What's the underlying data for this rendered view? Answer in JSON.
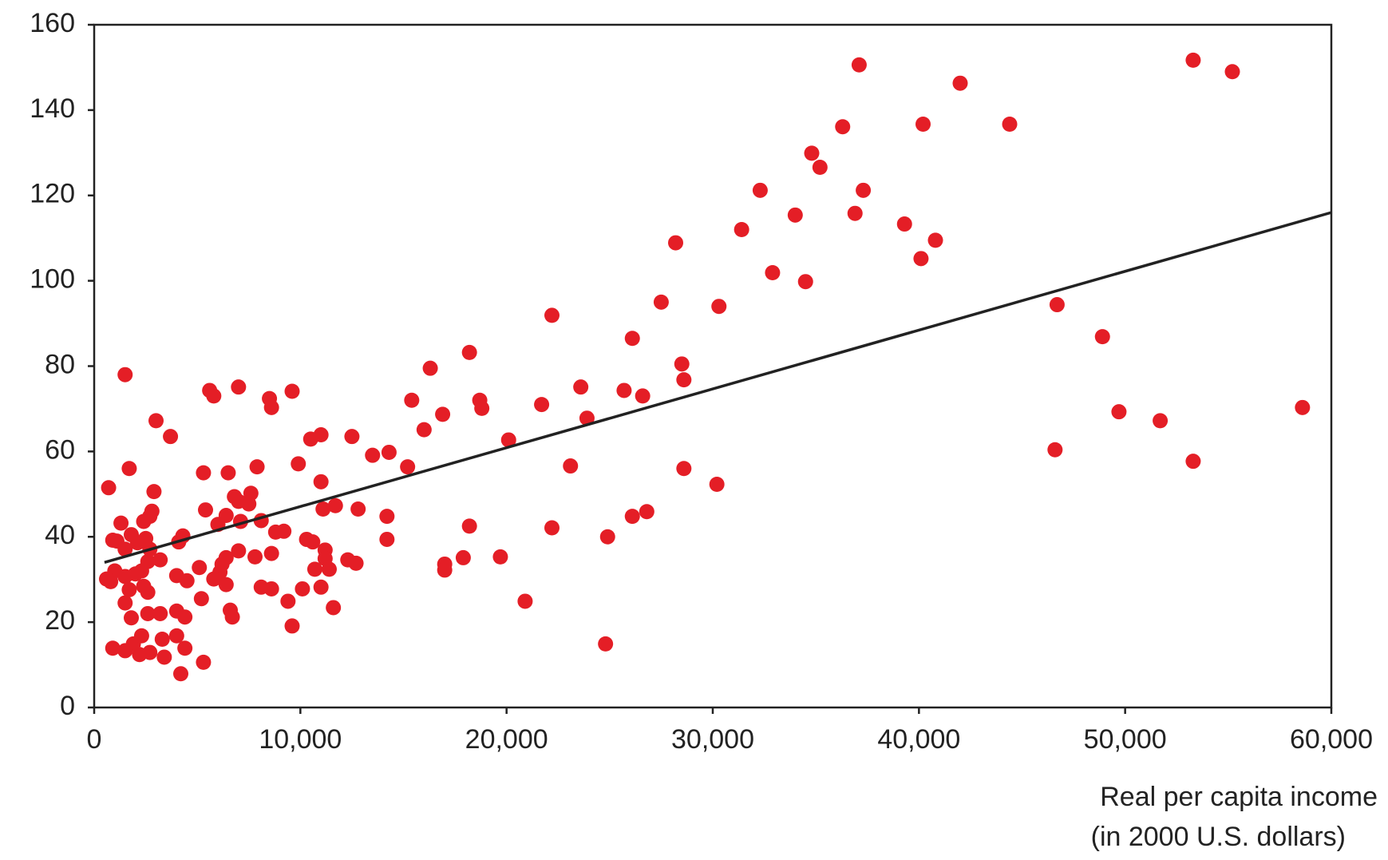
{
  "chart_data": {
    "type": "scatter",
    "x_label": [
      "Real per capita income",
      "(in 2000 U.S. dollars)"
    ],
    "xlim": [
      0,
      60000
    ],
    "xticks": [
      0,
      {
        "value": 10000,
        "label": "10,000"
      },
      {
        "value": 20000,
        "label": "20,000"
      },
      {
        "value": 30000,
        "label": "30,000"
      },
      {
        "value": 40000,
        "label": "40,000"
      },
      {
        "value": 50000,
        "label": "50,000"
      },
      {
        "value": 60000,
        "label": "60,000"
      }
    ],
    "ylim": [
      0,
      160
    ],
    "yticks": [
      0,
      20,
      40,
      60,
      80,
      100,
      120,
      140,
      160
    ],
    "series": [
      {
        "color": "#e41e26",
        "x": [
          37100,
          53300,
          55200,
          42000,
          44400,
          40200,
          36300,
          34800,
          35200,
          32300,
          37300,
          34000,
          36900,
          31400,
          39300,
          40800,
          40100,
          28200,
          32900,
          34500,
          27500,
          30300,
          22200,
          26100,
          46700,
          48900,
          58600,
          49700,
          51700,
          46600,
          53300,
          18200,
          16300,
          28500,
          28600,
          23600,
          25700,
          26600,
          18700,
          18800,
          21700,
          15400,
          16900,
          16000,
          23900,
          20100,
          28600,
          23100,
          30200,
          15200,
          14300,
          13500,
          12500,
          11000,
          10500,
          9900,
          11000,
          11100,
          11700,
          12800,
          14200,
          14200,
          18200,
          22200,
          26100,
          26800,
          24900,
          17900,
          19700,
          17000,
          17000,
          20900,
          24800,
          9600,
          8500,
          8600,
          7000,
          5600,
          5800,
          1500,
          3000,
          3700,
          1700,
          700,
          2900,
          5300,
          6500,
          7900,
          6800,
          7600,
          7500,
          7000,
          5400,
          6400,
          7100,
          8100,
          6000,
          2800,
          2700,
          2400,
          1300,
          8800,
          9200,
          10300,
          10600,
          11200,
          11200,
          10700,
          11400,
          12300,
          12700,
          11000,
          11600,
          10100,
          9400,
          9600,
          8600,
          7800,
          8100,
          8600,
          7000,
          6400,
          6200,
          6100,
          5100,
          5200,
          6400,
          5800,
          6600,
          6700,
          4300,
          4100,
          4000,
          4500,
          5300,
          4200,
          4400,
          4000,
          3300,
          3400,
          2700,
          2200,
          900,
          1500,
          1900,
          2300,
          4000,
          4400,
          3200,
          2600,
          1800,
          1500,
          2400,
          2600,
          3200,
          2600,
          2300,
          2000,
          1500,
          1700,
          800,
          1000,
          600,
          1100,
          900,
          1500,
          1800,
          2100,
          2500,
          2700
        ],
        "values": [
          150.6,
          151.7,
          149,
          146.3,
          136.7,
          136.7,
          136.1,
          129.9,
          126.6,
          121.2,
          121.2,
          115.4,
          115.8,
          112,
          113.3,
          109.5,
          105.2,
          108.9,
          101.9,
          99.8,
          95,
          94,
          91.9,
          86.5,
          94.4,
          86.9,
          70.3,
          69.3,
          67.2,
          60.4,
          57.7,
          83.2,
          79.5,
          80.5,
          76.8,
          75.1,
          74.3,
          73,
          72,
          70.1,
          71,
          72,
          68.7,
          65.1,
          67.8,
          62.7,
          56,
          56.6,
          52.3,
          56.4,
          59.8,
          59.1,
          63.5,
          63.9,
          62.9,
          57.1,
          52.9,
          46.5,
          47.3,
          46.5,
          44.8,
          39.4,
          42.5,
          42.1,
          44.8,
          45.9,
          40,
          35.1,
          35.3,
          33.6,
          32.2,
          24.9,
          14.9,
          74.1,
          72.4,
          70.3,
          75.1,
          74.3,
          73,
          78,
          67.2,
          63.5,
          56,
          51.5,
          50.6,
          55,
          55,
          56.4,
          49.4,
          50.2,
          47.7,
          48.3,
          46.3,
          45,
          43.6,
          43.8,
          42.9,
          46,
          44.8,
          43.6,
          43.2,
          41.1,
          41.3,
          39.4,
          38.8,
          36.9,
          34.9,
          32.4,
          32.4,
          34.6,
          33.8,
          28.2,
          23.4,
          27.8,
          24.9,
          19.1,
          36.1,
          35.3,
          28.2,
          27.8,
          36.7,
          35.1,
          33.6,
          31.7,
          32.8,
          25.5,
          28.8,
          30.1,
          22.8,
          21.2,
          40.2,
          38.8,
          30.9,
          29.7,
          10.6,
          7.9,
          13.9,
          16.8,
          16,
          11.8,
          12.9,
          12.4,
          13.9,
          13.3,
          14.9,
          16.8,
          22.6,
          21.2,
          22,
          22,
          21,
          24.5,
          28.4,
          27,
          34.6,
          34.2,
          32,
          31.3,
          30.7,
          27.6,
          29.5,
          32,
          30.1,
          39,
          39.2,
          37.1,
          40.5,
          38.6,
          39.6,
          37.1
        ]
      }
    ],
    "trend_line": {
      "color": "#222222",
      "x": [
        500,
        60000
      ],
      "values": [
        34,
        116
      ]
    }
  }
}
